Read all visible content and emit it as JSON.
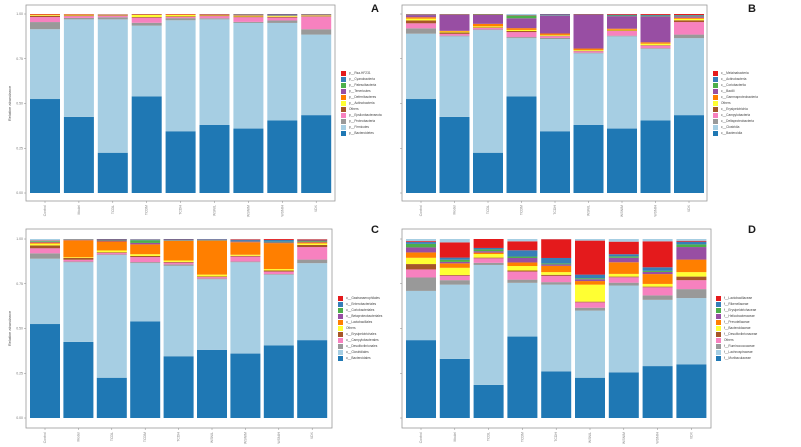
{
  "chart_data": [
    {
      "type": "bar",
      "panel": "A",
      "stacked": true,
      "title": "",
      "xlabel": "",
      "ylabel": "Relative abundance",
      "ylim": [
        0,
        1
      ],
      "yticks": [
        "0.00",
        "0.25",
        "0.50",
        "0.75",
        "1.00"
      ],
      "legend_position": "right",
      "categories": [
        "Control",
        "Model",
        "TCDL",
        "TCDM",
        "TCDH",
        "WSNIL",
        "WSNIM",
        "WSNIH",
        "XDX"
      ],
      "series": [
        {
          "name": "p__Bacteroidetes",
          "color": "#1f78b4",
          "values": [
            0.525,
            0.425,
            0.225,
            0.54,
            0.345,
            0.38,
            0.36,
            0.405,
            0.435
          ]
        },
        {
          "name": "p__Firmicutes",
          "color": "#a6cee3",
          "values": [
            0.39,
            0.545,
            0.745,
            0.395,
            0.62,
            0.59,
            0.59,
            0.545,
            0.45
          ]
        },
        {
          "name": "p__Proteobacteria",
          "color": "#999999",
          "values": [
            0.04,
            0.008,
            0.012,
            0.016,
            0.012,
            0.006,
            0.006,
            0.014,
            0.03
          ]
        },
        {
          "name": "p__Epsilonbacteraeota",
          "color": "#f781bf",
          "values": [
            0.028,
            0.01,
            0.008,
            0.028,
            0.006,
            0.012,
            0.026,
            0.016,
            0.07
          ]
        },
        {
          "name": "Others",
          "color": "#a65628",
          "values": [
            0.007,
            0.004,
            0.004,
            0.004,
            0.004,
            0.004,
            0.004,
            0.004,
            0.003
          ]
        },
        {
          "name": "p__Actinobacteria",
          "color": "#ffff33",
          "values": [
            0.004,
            0.004,
            0.001,
            0.012,
            0.008,
            0.002,
            0.004,
            0.004,
            0.003
          ]
        },
        {
          "name": "p__Deferribacteres",
          "color": "#ff7f00",
          "values": [
            0.004,
            0.002,
            0.002,
            0.002,
            0.003,
            0.002,
            0.002,
            0.002,
            0.002
          ]
        },
        {
          "name": "p__Tenericutes",
          "color": "#984ea3",
          "values": [
            0.001,
            0.001,
            0.002,
            0.001,
            0.001,
            0.002,
            0.002,
            0.002,
            0.001
          ]
        },
        {
          "name": "p__Patescibacteria",
          "color": "#4daf4a",
          "values": [
            0.0,
            0.0,
            0.0,
            0.001,
            0.0,
            0.001,
            0.002,
            0.002,
            0.002
          ]
        },
        {
          "name": "p__Cyanobacteria",
          "color": "#377eb8",
          "values": [
            0.0,
            0.0,
            0.0,
            0.0,
            0.0,
            0.0,
            0.003,
            0.005,
            0.003
          ]
        },
        {
          "name": "p__Rsa-HF231",
          "color": "#e41a1c",
          "values": [
            0.001,
            0.001,
            0.0,
            0.001,
            0.001,
            0.001,
            0.001,
            0.001,
            0.001
          ]
        }
      ]
    },
    {
      "type": "bar",
      "panel": "B",
      "stacked": true,
      "title": "",
      "xlabel": "",
      "ylabel": "Relative abundance",
      "ylim": [
        0,
        1
      ],
      "yticks": [
        "0.00",
        "0.25",
        "0.50",
        "0.75",
        "1.00"
      ],
      "legend_position": "right",
      "categories": [
        "Control",
        "Model",
        "TCDL",
        "TCDM",
        "TCDH",
        "WSNIL",
        "WSNIM",
        "WSNIH",
        "XDX"
      ],
      "series": [
        {
          "name": "c__Bacteroidia",
          "color": "#1f78b4",
          "values": [
            0.525,
            0.425,
            0.225,
            0.54,
            0.345,
            0.38,
            0.36,
            0.405,
            0.435
          ]
        },
        {
          "name": "c__Clostridia",
          "color": "#a6cee3",
          "values": [
            0.365,
            0.45,
            0.685,
            0.325,
            0.515,
            0.4,
            0.515,
            0.4,
            0.43
          ]
        },
        {
          "name": "c__Deltaproteobacteria",
          "color": "#999999",
          "values": [
            0.03,
            0.004,
            0.004,
            0.006,
            0.006,
            0.004,
            0.004,
            0.004,
            0.02
          ]
        },
        {
          "name": "c__Campylobacteria",
          "color": "#f781bf",
          "values": [
            0.028,
            0.01,
            0.008,
            0.028,
            0.01,
            0.008,
            0.026,
            0.014,
            0.07
          ]
        },
        {
          "name": "c__Erysipelotrichia",
          "color": "#a65628",
          "values": [
            0.016,
            0.008,
            0.003,
            0.006,
            0.003,
            0.003,
            0.003,
            0.003,
            0.01
          ]
        },
        {
          "name": "Others",
          "color": "#ffff33",
          "values": [
            0.01,
            0.005,
            0.006,
            0.006,
            0.004,
            0.004,
            0.004,
            0.008,
            0.008
          ]
        },
        {
          "name": "c__Gammaproteobacteria",
          "color": "#ff7f00",
          "values": [
            0.008,
            0.004,
            0.014,
            0.01,
            0.008,
            0.008,
            0.006,
            0.008,
            0.006
          ]
        },
        {
          "name": "c__Bacilli",
          "color": "#984ea3",
          "values": [
            0.012,
            0.09,
            0.05,
            0.055,
            0.1,
            0.19,
            0.07,
            0.145,
            0.008
          ]
        },
        {
          "name": "c__Coriobacteriia",
          "color": "#4daf4a",
          "values": [
            0.002,
            0.002,
            0.003,
            0.015,
            0.002,
            0.001,
            0.004,
            0.004,
            0.004
          ]
        },
        {
          "name": "c__Actinobacteria",
          "color": "#377eb8",
          "values": [
            0.002,
            0.001,
            0.001,
            0.002,
            0.006,
            0.001,
            0.004,
            0.004,
            0.003
          ]
        },
        {
          "name": "c__Melainabacteria",
          "color": "#e41a1c",
          "values": [
            0.002,
            0.001,
            0.001,
            0.001,
            0.001,
            0.001,
            0.004,
            0.006,
            0.006
          ]
        }
      ]
    },
    {
      "type": "bar",
      "panel": "C",
      "stacked": true,
      "title": "",
      "xlabel": "",
      "ylabel": "Relative abundance",
      "ylim": [
        0,
        1
      ],
      "yticks": [
        "0.00",
        "0.25",
        "0.50",
        "0.75",
        "1.00"
      ],
      "legend_position": "right",
      "categories": [
        "Control",
        "Model",
        "TCDL",
        "TCDM",
        "TCDH",
        "WSNIL",
        "WSNIM",
        "WSNIH",
        "XDX"
      ],
      "series": [
        {
          "name": "o__Bacteroidales",
          "color": "#1f78b4",
          "values": [
            0.525,
            0.425,
            0.225,
            0.54,
            0.345,
            0.38,
            0.36,
            0.405,
            0.435
          ]
        },
        {
          "name": "o__Clostridiales",
          "color": "#a6cee3",
          "values": [
            0.365,
            0.445,
            0.685,
            0.325,
            0.505,
            0.395,
            0.51,
            0.395,
            0.43
          ]
        },
        {
          "name": "o__Desulfovibrionales",
          "color": "#999999",
          "values": [
            0.03,
            0.004,
            0.004,
            0.006,
            0.008,
            0.004,
            0.004,
            0.004,
            0.02
          ]
        },
        {
          "name": "o__Campylobacterales",
          "color": "#f781bf",
          "values": [
            0.028,
            0.01,
            0.008,
            0.028,
            0.01,
            0.008,
            0.028,
            0.014,
            0.07
          ]
        },
        {
          "name": "o__Erysipelotrichales",
          "color": "#a65628",
          "values": [
            0.016,
            0.01,
            0.004,
            0.006,
            0.004,
            0.004,
            0.004,
            0.006,
            0.012
          ]
        },
        {
          "name": "Others",
          "color": "#ffff33",
          "values": [
            0.01,
            0.004,
            0.01,
            0.01,
            0.008,
            0.01,
            0.006,
            0.008,
            0.008
          ]
        },
        {
          "name": "o__Lactobacillales",
          "color": "#ff7f00",
          "values": [
            0.006,
            0.095,
            0.05,
            0.055,
            0.11,
            0.19,
            0.07,
            0.145,
            0.006
          ]
        },
        {
          "name": "o__Betaproteobacteriales",
          "color": "#984ea3",
          "values": [
            0.004,
            0.002,
            0.006,
            0.008,
            0.002,
            0.002,
            0.004,
            0.004,
            0.004
          ]
        },
        {
          "name": "o__Coriobacteriales",
          "color": "#4daf4a",
          "values": [
            0.004,
            0.001,
            0.003,
            0.015,
            0.002,
            0.001,
            0.002,
            0.004,
            0.004
          ]
        },
        {
          "name": "o__Enterobacteriales",
          "color": "#377eb8",
          "values": [
            0.002,
            0.002,
            0.006,
            0.004,
            0.005,
            0.004,
            0.006,
            0.01,
            0.003
          ]
        },
        {
          "name": "o__Gastranaerophilales",
          "color": "#e41a1c",
          "values": [
            0.002,
            0.001,
            0.001,
            0.001,
            0.001,
            0.001,
            0.004,
            0.006,
            0.006
          ]
        }
      ]
    },
    {
      "type": "bar",
      "panel": "D",
      "stacked": true,
      "title": "",
      "xlabel": "",
      "ylabel": "Relative abundance",
      "ylim": [
        0,
        1
      ],
      "yticks": [
        "0.00",
        "0.25",
        "0.50",
        "0.75",
        "1.00"
      ],
      "legend_position": "right",
      "categories": [
        "Control",
        "Model",
        "TCDL",
        "TCDM",
        "TCDH",
        "WSNIL",
        "WSNIM",
        "WSNIH",
        "XDX"
      ],
      "series": [
        {
          "name": "f__Muribaculaceae",
          "color": "#1f78b4",
          "values": [
            0.435,
            0.33,
            0.185,
            0.455,
            0.26,
            0.225,
            0.255,
            0.29,
            0.3
          ]
        },
        {
          "name": "f__Lachnospiraceae",
          "color": "#a6cee3",
          "values": [
            0.275,
            0.415,
            0.67,
            0.3,
            0.485,
            0.375,
            0.485,
            0.37,
            0.37
          ]
        },
        {
          "name": "f__Ruminococcaceae",
          "color": "#999999",
          "values": [
            0.075,
            0.025,
            0.012,
            0.018,
            0.014,
            0.016,
            0.016,
            0.025,
            0.05
          ]
        },
        {
          "name": "Others",
          "color": "#f781bf",
          "values": [
            0.045,
            0.025,
            0.025,
            0.045,
            0.035,
            0.03,
            0.03,
            0.045,
            0.05
          ]
        },
        {
          "name": "f__Desulfovibrionaceae",
          "color": "#a65628",
          "values": [
            0.03,
            0.004,
            0.004,
            0.006,
            0.006,
            0.004,
            0.004,
            0.004,
            0.02
          ]
        },
        {
          "name": "f__Bacteroidaceae",
          "color": "#ffff33",
          "values": [
            0.035,
            0.04,
            0.02,
            0.025,
            0.015,
            0.095,
            0.015,
            0.015,
            0.025
          ]
        },
        {
          "name": "f__Prevotellaceae",
          "color": "#ff7f00",
          "values": [
            0.03,
            0.025,
            0.008,
            0.02,
            0.035,
            0.02,
            0.065,
            0.055,
            0.07
          ]
        },
        {
          "name": "f__Helicobacteraceae",
          "color": "#984ea3",
          "values": [
            0.028,
            0.008,
            0.008,
            0.025,
            0.008,
            0.01,
            0.025,
            0.012,
            0.07
          ]
        },
        {
          "name": "f__Erysipelotrichaceae",
          "color": "#4daf4a",
          "values": [
            0.02,
            0.012,
            0.01,
            0.008,
            0.006,
            0.006,
            0.008,
            0.006,
            0.015
          ]
        },
        {
          "name": "f__Rikenellaceae",
          "color": "#377eb8",
          "values": [
            0.01,
            0.012,
            0.008,
            0.035,
            0.03,
            0.02,
            0.012,
            0.02,
            0.015
          ]
        },
        {
          "name": "f__Lactobacillaceae",
          "color": "#e41a1c",
          "values": [
            0.005,
            0.085,
            0.05,
            0.05,
            0.105,
            0.19,
            0.07,
            0.145,
            0.005
          ]
        }
      ]
    }
  ],
  "panels": [
    {
      "letter": "A",
      "legend_title": ""
    },
    {
      "letter": "B",
      "legend_title": ""
    },
    {
      "letter": "C",
      "legend_title": ""
    },
    {
      "letter": "D",
      "legend_title": ""
    }
  ]
}
